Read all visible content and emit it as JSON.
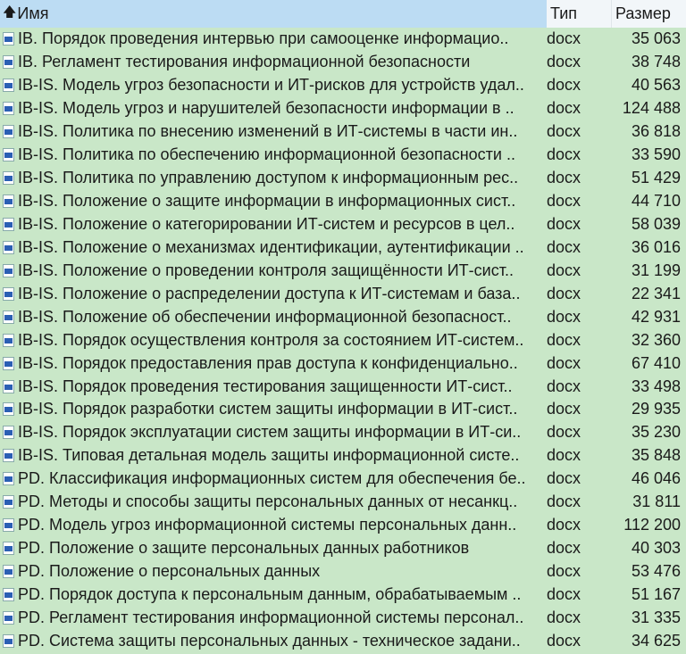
{
  "header": {
    "name": "Имя",
    "type": "Тип",
    "size": "Размер",
    "sort_icon": "arrow-up-icon"
  },
  "colors": {
    "header": "#bcdcf3",
    "rows": "#c9e7c8",
    "file_icon": "#2b5fb4"
  },
  "rows": [
    {
      "name": "IB. Порядок проведения интервью при самооценке информацио..",
      "type": "docx",
      "size": "35 063"
    },
    {
      "name": "IB. Регламент тестирования информационной безопасности",
      "type": "docx",
      "size": "38 748"
    },
    {
      "name": "IB-IS. Модель угроз безопасности и ИТ-рисков для устройств удал..",
      "type": "docx",
      "size": "40 563"
    },
    {
      "name": "IB-IS. Модель угроз и нарушителей безопасности информации в ..",
      "type": "docx",
      "size": "124 488"
    },
    {
      "name": "IB-IS. Политика по внесению изменений в ИТ-системы в части ин..",
      "type": "docx",
      "size": "36 818"
    },
    {
      "name": "IB-IS. Политика по обеспечению информационной безопасности ..",
      "type": "docx",
      "size": "33 590"
    },
    {
      "name": "IB-IS. Политика по управлению доступом к информационным рес..",
      "type": "docx",
      "size": "51 429"
    },
    {
      "name": "IB-IS. Положение о защите информации в информационных сист..",
      "type": "docx",
      "size": "44 710"
    },
    {
      "name": "IB-IS. Положение о категорировании ИТ-систем и ресурсов в цел..",
      "type": "docx",
      "size": "58 039"
    },
    {
      "name": "IB-IS. Положение о механизмах идентификации, аутентификации ..",
      "type": "docx",
      "size": "36 016"
    },
    {
      "name": "IB-IS. Положение о проведении контроля защищённости ИТ-сист..",
      "type": "docx",
      "size": "31 199"
    },
    {
      "name": "IB-IS. Положение о распределении доступа к ИТ-системам и база..",
      "type": "docx",
      "size": "22 341"
    },
    {
      "name": "IB-IS. Положение об обеспечении информационной безопасност..",
      "type": "docx",
      "size": "42 931"
    },
    {
      "name": "IB-IS. Порядок осуществления контроля за состоянием ИТ-систем..",
      "type": "docx",
      "size": "32 360"
    },
    {
      "name": "IB-IS. Порядок предоставления прав доступа к конфиденциально..",
      "type": "docx",
      "size": "67 410"
    },
    {
      "name": "IB-IS. Порядок проведения тестирования защищенности ИТ-сист..",
      "type": "docx",
      "size": "33 498"
    },
    {
      "name": "IB-IS. Порядок разработки систем защиты информации в ИТ-сист..",
      "type": "docx",
      "size": "29 935"
    },
    {
      "name": "IB-IS. Порядок эксплуатации систем защиты информации в ИТ-си..",
      "type": "docx",
      "size": "35 230"
    },
    {
      "name": "IB-IS. Типовая детальная модель защиты информационной систе..",
      "type": "docx",
      "size": "35 848"
    },
    {
      "name": "PD. Классификация информационных систем для обеспечения бе..",
      "type": "docx",
      "size": "46 046"
    },
    {
      "name": "PD. Методы и способы защиты персональных данных от несанкц..",
      "type": "docx",
      "size": "31 811"
    },
    {
      "name": "PD. Модель угроз информационной системы персональных данн..",
      "type": "docx",
      "size": "112 200"
    },
    {
      "name": "PD. Положение о защите персональных данных работников",
      "type": "docx",
      "size": "40 303"
    },
    {
      "name": "PD. Положение о персональных данных",
      "type": "docx",
      "size": "53 476"
    },
    {
      "name": "PD. Порядок доступа к персональным данным, обрабатываемым ..",
      "type": "docx",
      "size": "51 167"
    },
    {
      "name": "PD. Регламент тестирования информационной системы персонал..",
      "type": "docx",
      "size": "31 335"
    },
    {
      "name": "PD. Система защиты персональных данных - техническое задани..",
      "type": "docx",
      "size": "34 625"
    }
  ]
}
